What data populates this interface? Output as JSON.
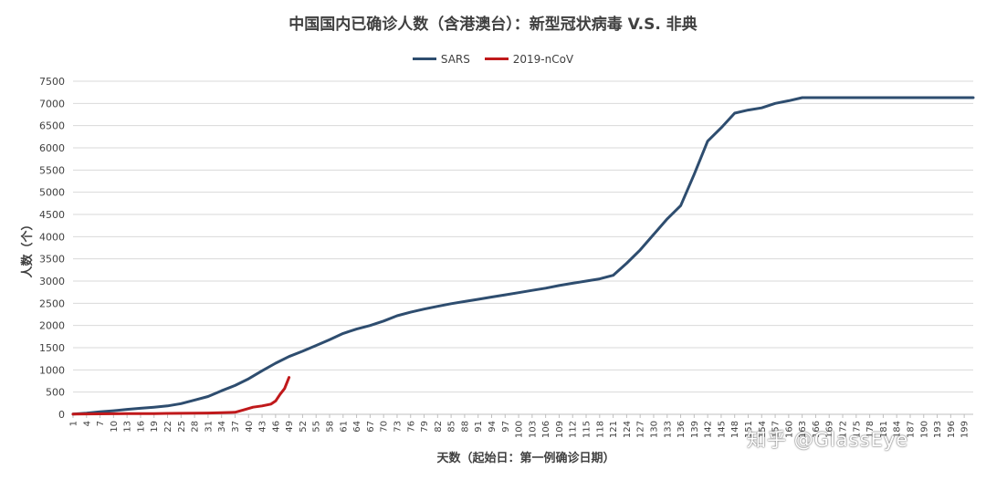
{
  "chart_data": {
    "type": "line",
    "title": "中国国内已确诊人数（含港澳台）：新型冠状病毒  V.S. 非典",
    "xlabel": "天数（起始日：第一例确诊日期）",
    "ylabel": "人数（个）",
    "xlim": [
      1,
      201
    ],
    "ylim": [
      0,
      7500
    ],
    "yticks": [
      0,
      500,
      1000,
      1500,
      2000,
      2500,
      3000,
      3500,
      4000,
      4500,
      5000,
      5500,
      6000,
      6500,
      7000,
      7500
    ],
    "xticks": [
      1,
      4,
      7,
      10,
      13,
      16,
      19,
      22,
      25,
      28,
      31,
      34,
      37,
      40,
      43,
      46,
      49,
      52,
      55,
      58,
      61,
      64,
      67,
      70,
      73,
      76,
      79,
      82,
      85,
      88,
      91,
      94,
      97,
      100,
      103,
      106,
      109,
      112,
      115,
      118,
      121,
      124,
      127,
      130,
      133,
      136,
      139,
      142,
      145,
      148,
      151,
      154,
      157,
      160,
      163,
      166,
      169,
      172,
      175,
      178,
      181,
      184,
      187,
      190,
      193,
      196,
      199
    ],
    "grid": true,
    "legend_position": "top-center",
    "series": [
      {
        "name": "SARS",
        "color": "#2e4d6f",
        "points": [
          [
            1,
            5
          ],
          [
            4,
            25
          ],
          [
            7,
            55
          ],
          [
            10,
            80
          ],
          [
            13,
            110
          ],
          [
            16,
            135
          ],
          [
            19,
            160
          ],
          [
            22,
            190
          ],
          [
            25,
            240
          ],
          [
            28,
            320
          ],
          [
            31,
            400
          ],
          [
            34,
            530
          ],
          [
            37,
            650
          ],
          [
            40,
            800
          ],
          [
            43,
            980
          ],
          [
            46,
            1150
          ],
          [
            49,
            1300
          ],
          [
            52,
            1420
          ],
          [
            55,
            1550
          ],
          [
            58,
            1680
          ],
          [
            61,
            1820
          ],
          [
            64,
            1920
          ],
          [
            67,
            2000
          ],
          [
            70,
            2100
          ],
          [
            73,
            2220
          ],
          [
            76,
            2300
          ],
          [
            79,
            2370
          ],
          [
            82,
            2430
          ],
          [
            85,
            2490
          ],
          [
            88,
            2540
          ],
          [
            91,
            2590
          ],
          [
            94,
            2640
          ],
          [
            97,
            2690
          ],
          [
            100,
            2740
          ],
          [
            103,
            2790
          ],
          [
            106,
            2840
          ],
          [
            109,
            2900
          ],
          [
            112,
            2950
          ],
          [
            115,
            3000
          ],
          [
            118,
            3050
          ],
          [
            121,
            3130
          ],
          [
            124,
            3400
          ],
          [
            127,
            3700
          ],
          [
            130,
            4050
          ],
          [
            133,
            4400
          ],
          [
            136,
            4700
          ],
          [
            139,
            5400
          ],
          [
            142,
            6150
          ],
          [
            145,
            6450
          ],
          [
            148,
            6780
          ],
          [
            151,
            6850
          ],
          [
            154,
            6900
          ],
          [
            157,
            7000
          ],
          [
            160,
            7060
          ],
          [
            163,
            7130
          ],
          [
            166,
            7130
          ],
          [
            170,
            7130
          ],
          [
            175,
            7130
          ],
          [
            180,
            7130
          ],
          [
            185,
            7130
          ],
          [
            190,
            7130
          ],
          [
            195,
            7130
          ],
          [
            201,
            7130
          ]
        ]
      },
      {
        "name": "2019-nCoV",
        "color": "#c0191b",
        "points": [
          [
            1,
            5
          ],
          [
            4,
            8
          ],
          [
            7,
            10
          ],
          [
            10,
            12
          ],
          [
            13,
            14
          ],
          [
            16,
            15
          ],
          [
            19,
            17
          ],
          [
            22,
            20
          ],
          [
            25,
            22
          ],
          [
            28,
            25
          ],
          [
            31,
            28
          ],
          [
            34,
            35
          ],
          [
            37,
            45
          ],
          [
            39,
            100
          ],
          [
            41,
            160
          ],
          [
            43,
            190
          ],
          [
            45,
            230
          ],
          [
            46,
            300
          ],
          [
            47,
            450
          ],
          [
            48,
            580
          ],
          [
            49,
            830
          ]
        ]
      }
    ]
  },
  "watermark": "知乎 @GlassEye"
}
